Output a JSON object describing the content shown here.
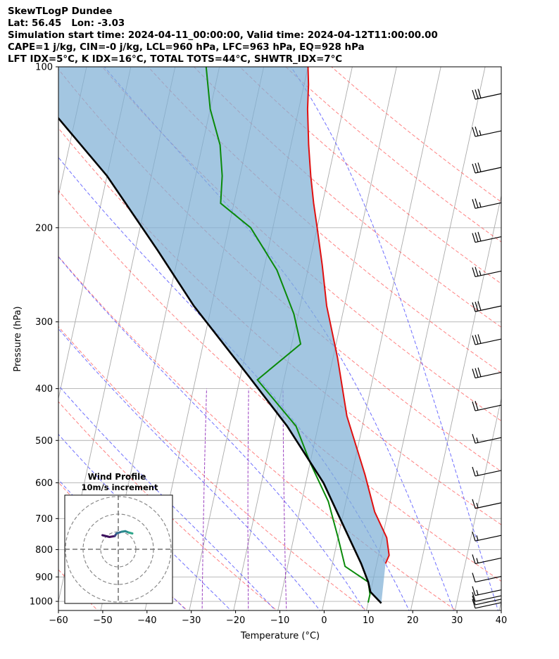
{
  "header": {
    "line1": "SkewTLogP Dundee",
    "line2": "Lat: 56.45   Lon: -3.03",
    "line3": "Simulation start time: 2024-04-11_00:00:00, Valid time: 2024-04-12T11:00:00.00",
    "line4": "CAPE=1 j/kg, CIN=-0 j/kg, LCL=960 hPa, LFC=963 hPa, EQ=928 hPa",
    "line5": "LFT IDX=5°C, K IDX=16°C, TOTAL TOTS=44°C, SHWTR_IDX=7°C"
  },
  "chart_data": {
    "type": "line",
    "subtype": "skew-T log-P diagram",
    "xlabel": "Temperature (°C)",
    "ylabel": "Pressure (hPa)",
    "xlim": [
      -60,
      40
    ],
    "ylim": [
      1040,
      100
    ],
    "y_scale": "log",
    "x_ticks": [
      -60,
      -50,
      -40,
      -30,
      -20,
      -10,
      0,
      10,
      20,
      30,
      40
    ],
    "x_tick_labels": [
      "−60",
      "−50",
      "−40",
      "−30",
      "−20",
      "−10",
      "0",
      "10",
      "20",
      "30",
      "40"
    ],
    "y_ticks": [
      100,
      200,
      300,
      400,
      500,
      600,
      700,
      800,
      900,
      1000
    ],
    "y_tick_labels": [
      "100",
      "200",
      "300",
      "400",
      "500",
      "600",
      "700",
      "800",
      "900",
      "1000"
    ],
    "grid": true,
    "colors": {
      "temperature": "#e01010",
      "dewpoint": "#0a8a0a",
      "parcel": "#000000",
      "cape_fill": "#7fb0d5",
      "isotherm": "#aaaaaa",
      "dry_adiabat": "#ff5555",
      "moist_adiabat": "#4a4aff",
      "mixing_ratio": "#9a40c0"
    },
    "series": [
      {
        "role": "temperature",
        "points": [
          [
            12,
            850
          ],
          [
            12.4,
            820
          ],
          [
            11,
            760
          ],
          [
            7,
            680
          ],
          [
            3,
            580
          ],
          [
            -4,
            450
          ],
          [
            -9,
            350
          ],
          [
            -14,
            280
          ],
          [
            -17,
            235
          ],
          [
            -20,
            200
          ],
          [
            -22,
            180
          ],
          [
            -24,
            160
          ],
          [
            -26,
            140
          ],
          [
            -28,
            120
          ],
          [
            -29,
            108
          ],
          [
            -30,
            100
          ]
        ]
      },
      {
        "role": "dewpoint",
        "points": [
          [
            10,
            1005
          ],
          [
            10,
            970
          ],
          [
            9,
            920
          ],
          [
            3,
            860
          ],
          [
            0,
            760
          ],
          [
            -4,
            650
          ],
          [
            -10,
            550
          ],
          [
            -15,
            470
          ],
          [
            -26,
            385
          ],
          [
            -18,
            330
          ],
          [
            -21,
            290
          ],
          [
            -27,
            240
          ],
          [
            -35,
            200
          ],
          [
            -43,
            180
          ],
          [
            -44,
            160
          ],
          [
            -46,
            140
          ],
          [
            -50,
            120
          ],
          [
            -53,
            100
          ]
        ]
      },
      {
        "role": "parcel",
        "points": [
          [
            13,
            1008
          ],
          [
            10,
            960
          ],
          [
            9,
            920
          ],
          [
            6.5,
            850
          ],
          [
            2,
            750
          ],
          [
            -6,
            600
          ],
          [
            -17,
            470
          ],
          [
            -28,
            380
          ],
          [
            -44,
            280
          ],
          [
            -55,
            220
          ],
          [
            -70,
            160
          ],
          [
            -86,
            120
          ],
          [
            -96,
            100
          ]
        ]
      }
    ],
    "wind_barbs": {
      "pressures": [
        115,
        135,
        158,
        184,
        213,
        247,
        287,
        331,
        382,
        440,
        506,
        583,
        670,
        771,
        850,
        920,
        975,
        1000,
        1015,
        1030
      ],
      "barb_types": [
        "30kt",
        "25kt",
        "30kt",
        "25kt",
        "30kt",
        "25kt",
        "30kt",
        "30kt",
        "30kt",
        "20kt",
        "15kt",
        "15kt",
        "15kt",
        "15kt",
        "15kt",
        "10kt",
        "15kt",
        "10kt",
        "10kt",
        "10kt"
      ]
    },
    "inset": {
      "title": "Wind Profile",
      "subtitle": "10m/s increment",
      "type": "hodograph",
      "rings_ms": [
        10,
        20,
        30
      ],
      "hodograph_uv": [
        [
          -9,
          8
        ],
        [
          -5,
          7
        ],
        [
          -2,
          7.5
        ],
        [
          -1,
          9
        ],
        [
          2,
          10
        ],
        [
          4,
          10.3
        ],
        [
          6,
          9.5
        ],
        [
          8,
          9
        ]
      ]
    }
  }
}
